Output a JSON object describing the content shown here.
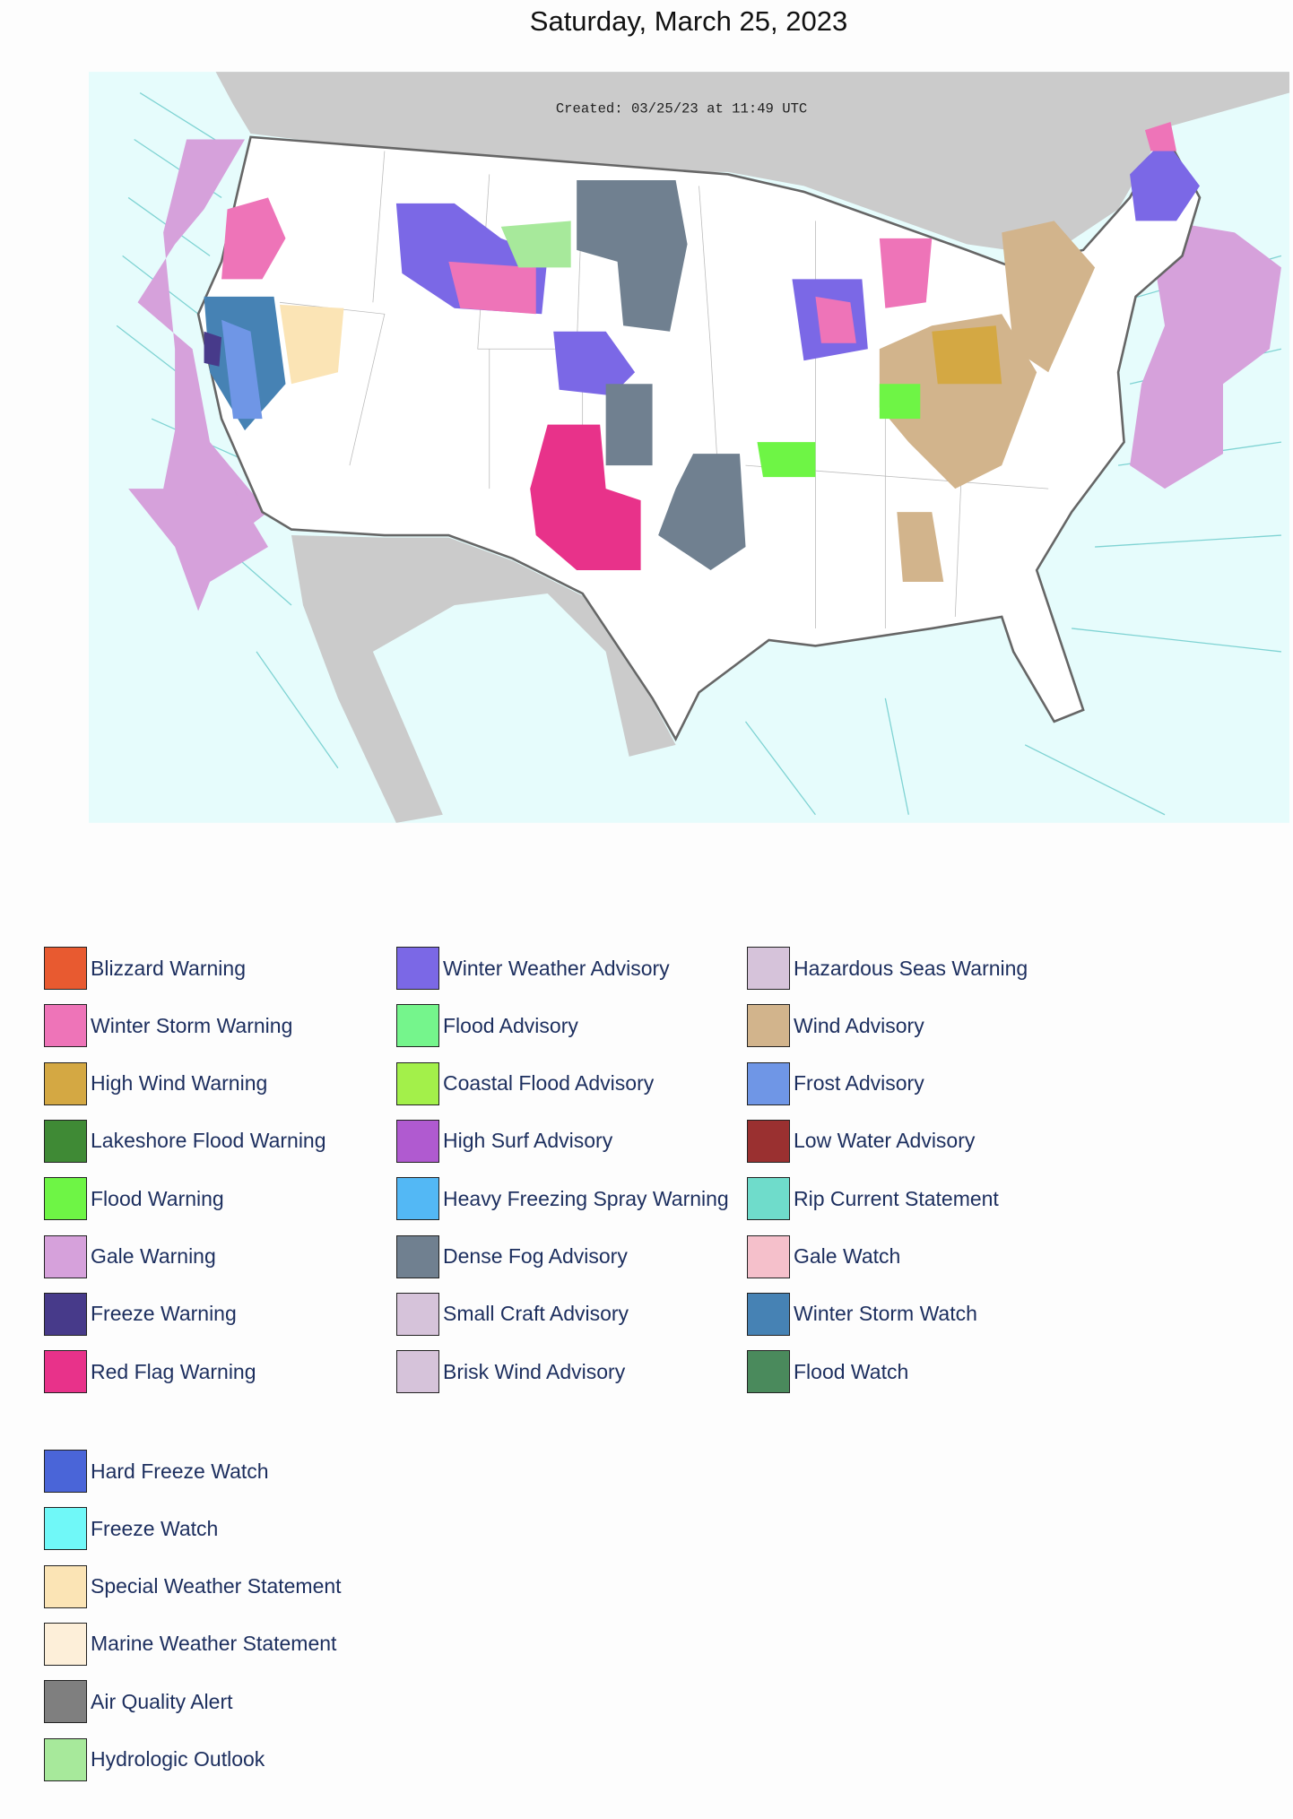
{
  "header": {
    "title": "Saturday, March 25, 2023"
  },
  "map": {
    "created": "Created: 03/25/23 at 11:49 UTC"
  },
  "legend": {
    "items": [
      {
        "label": "Blizzard Warning",
        "color": "#e85a30"
      },
      {
        "label": "Winter Storm Warning",
        "color": "#ee74b8"
      },
      {
        "label": "High Wind Warning",
        "color": "#d4a843"
      },
      {
        "label": "Lakeshore Flood Warning",
        "color": "#3f8a35"
      },
      {
        "label": "Flood Warning",
        "color": "#6ef545"
      },
      {
        "label": "Gale Warning",
        "color": "#d6a1db"
      },
      {
        "label": "Freeze Warning",
        "color": "#473a8a"
      },
      {
        "label": "Red Flag Warning",
        "color": "#e8328a"
      },
      {
        "label": "Winter Weather Advisory",
        "color": "#7b68e6"
      },
      {
        "label": "Flood Advisory",
        "color": "#75f58c"
      },
      {
        "label": "Coastal Flood Advisory",
        "color": "#a3f04a"
      },
      {
        "label": "High Surf Advisory",
        "color": "#b05ad0"
      },
      {
        "label": "Heavy Freezing Spray Warning",
        "color": "#53b8f5"
      },
      {
        "label": "Dense Fog Advisory",
        "color": "#708090"
      },
      {
        "label": "Small Craft Advisory",
        "color": "#d6c3da"
      },
      {
        "label": "Brisk Wind Advisory",
        "color": "#d6c3da"
      },
      {
        "label": "Hazardous Seas Warning",
        "color": "#d6c3da"
      },
      {
        "label": "Wind Advisory",
        "color": "#d2b48c"
      },
      {
        "label": "Frost Advisory",
        "color": "#6f96e6"
      },
      {
        "label": "Low Water Advisory",
        "color": "#9a3030"
      },
      {
        "label": "Rip Current Statement",
        "color": "#6fdccb"
      },
      {
        "label": "Gale Watch",
        "color": "#f5c0cb"
      },
      {
        "label": "Winter Storm Watch",
        "color": "#4682b4"
      },
      {
        "label": "Flood Watch",
        "color": "#4a8a5c"
      },
      {
        "label": "Hard Freeze Watch",
        "color": "#4a65d8"
      },
      {
        "label": "Freeze Watch",
        "color": "#70f8f8"
      },
      {
        "label": "Special Weather Statement",
        "color": "#fbe4b5"
      },
      {
        "label": "Marine Weather Statement",
        "color": "#fdefd9"
      },
      {
        "label": "Air Quality Alert",
        "color": "#7f7f7f"
      },
      {
        "label": "Hydrologic Outlook",
        "color": "#a7e99b"
      }
    ]
  }
}
